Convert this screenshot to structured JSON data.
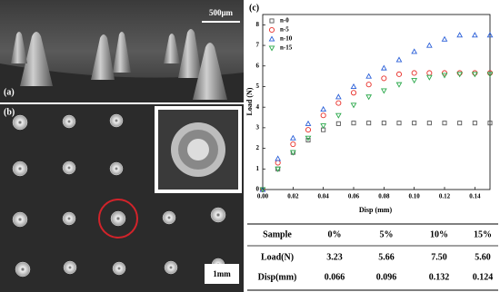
{
  "figure": {
    "panel_a": {
      "label": "(a)",
      "scale_bar": "500μm"
    },
    "panel_b": {
      "label": "(b)",
      "scale_bar": "1mm"
    }
  },
  "chart_data": {
    "type": "scatter",
    "panel_label": "(c)",
    "x_label": "Disp (mm)",
    "y_label": "Load (N)",
    "x": [
      0,
      0.01,
      0.02,
      0.03,
      0.04,
      0.05,
      0.06,
      0.07,
      0.08,
      0.09,
      0.1,
      0.11,
      0.12,
      0.13,
      0.14,
      0.15
    ],
    "series": [
      {
        "name": "n-0",
        "color": "#555555",
        "marker": "square",
        "values": [
          0,
          1.0,
          1.8,
          2.4,
          2.9,
          3.2,
          3.23,
          3.23,
          3.23,
          3.23,
          3.23,
          3.23,
          3.23,
          3.23,
          3.23,
          3.23
        ]
      },
      {
        "name": "n-5",
        "color": "#e8302a",
        "marker": "circle",
        "values": [
          0,
          1.3,
          2.2,
          2.9,
          3.6,
          4.2,
          4.7,
          5.1,
          5.4,
          5.6,
          5.66,
          5.66,
          5.66,
          5.66,
          5.66,
          5.66
        ]
      },
      {
        "name": "n-10",
        "color": "#2a5fd8",
        "marker": "triangle-up",
        "values": [
          0,
          1.5,
          2.5,
          3.2,
          3.9,
          4.5,
          5.0,
          5.5,
          5.9,
          6.3,
          6.7,
          7.0,
          7.3,
          7.5,
          7.5,
          7.5
        ]
      },
      {
        "name": "n-15",
        "color": "#2aa84a",
        "marker": "triangle-down",
        "values": [
          0,
          1.0,
          1.8,
          2.5,
          3.1,
          3.6,
          4.1,
          4.5,
          4.8,
          5.1,
          5.3,
          5.45,
          5.55,
          5.6,
          5.6,
          5.6
        ]
      }
    ],
    "xlim": [
      0,
      0.15
    ],
    "ylim": [
      0,
      8.5
    ],
    "xticks": [
      {
        "value": 0,
        "label": "0.00"
      },
      {
        "value": 0.02,
        "label": "0.02"
      },
      {
        "value": 0.04,
        "label": "0.04"
      },
      {
        "value": 0.06,
        "label": "0.06"
      },
      {
        "value": 0.08,
        "label": "0.08"
      },
      {
        "value": 0.1,
        "label": "0.10"
      },
      {
        "value": 0.12,
        "label": "0.12"
      },
      {
        "value": 0.14,
        "label": "0.14"
      }
    ],
    "yticks": [
      0,
      1,
      2,
      3,
      4,
      5,
      6,
      7,
      8
    ],
    "legend": "upper-left"
  },
  "table": {
    "header": [
      "Sample",
      "0%",
      "5%",
      "10%",
      "15%"
    ],
    "rows": [
      [
        "Load(N)",
        "3.23",
        "5.66",
        "7.50",
        "5.60"
      ],
      [
        "Disp(mm)",
        "0.066",
        "0.096",
        "0.132",
        "0.124"
      ]
    ]
  }
}
